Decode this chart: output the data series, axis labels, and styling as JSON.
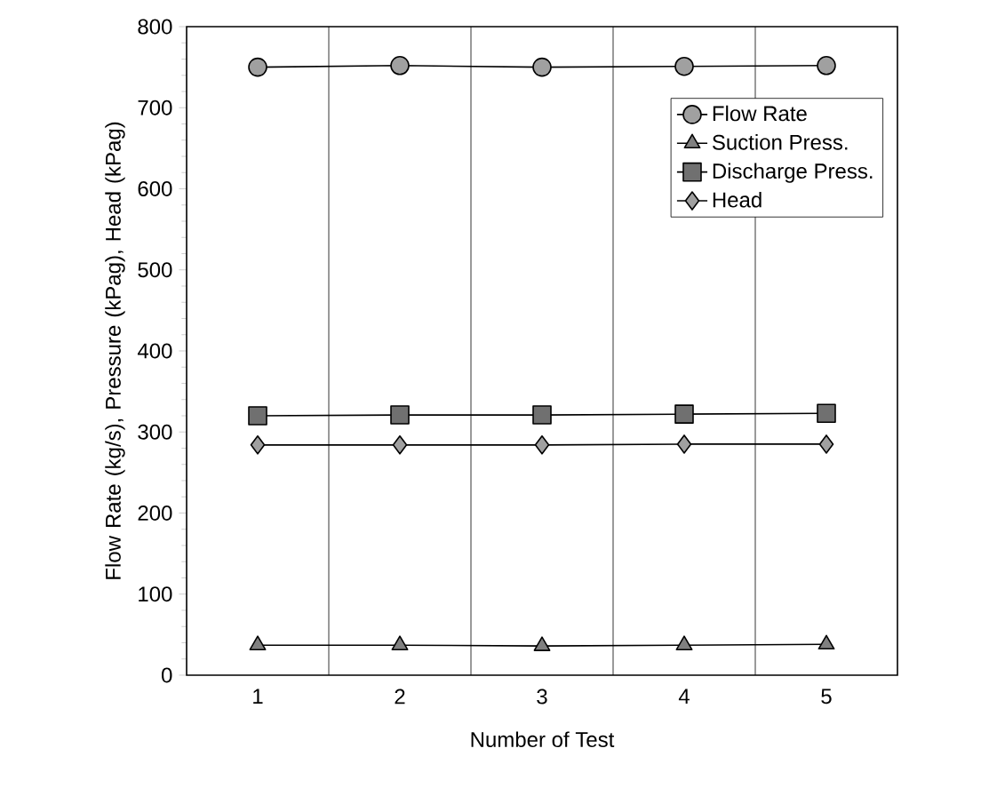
{
  "chart_data": {
    "type": "line",
    "xlabel": "Number of Test",
    "ylabel": "Flow Rate (kg/s), Pressure (kPag), Head (kPag)",
    "categories": [
      "1",
      "2",
      "3",
      "4",
      "5"
    ],
    "series": [
      {
        "name": "Flow Rate",
        "color": "#a0a0a0",
        "marker": "circle",
        "values": [
          750,
          752,
          750,
          751,
          752
        ]
      },
      {
        "name": "Suction Press.",
        "color": "#808080",
        "marker": "triangle",
        "values": [
          37,
          37,
          36,
          37,
          38
        ]
      },
      {
        "name": "Discharge Press.",
        "color": "#707070",
        "marker": "square",
        "values": [
          320,
          321,
          321,
          322,
          323
        ]
      },
      {
        "name": "Head",
        "color": "#a0a0a0",
        "marker": "diamond",
        "values": [
          284,
          284,
          284,
          285,
          285
        ]
      }
    ],
    "ylim": [
      0,
      800
    ],
    "yticks": [
      0,
      100,
      200,
      300,
      400,
      500,
      600,
      700,
      800
    ],
    "grid": "x",
    "legend": "right",
    "line_style": "solid"
  }
}
